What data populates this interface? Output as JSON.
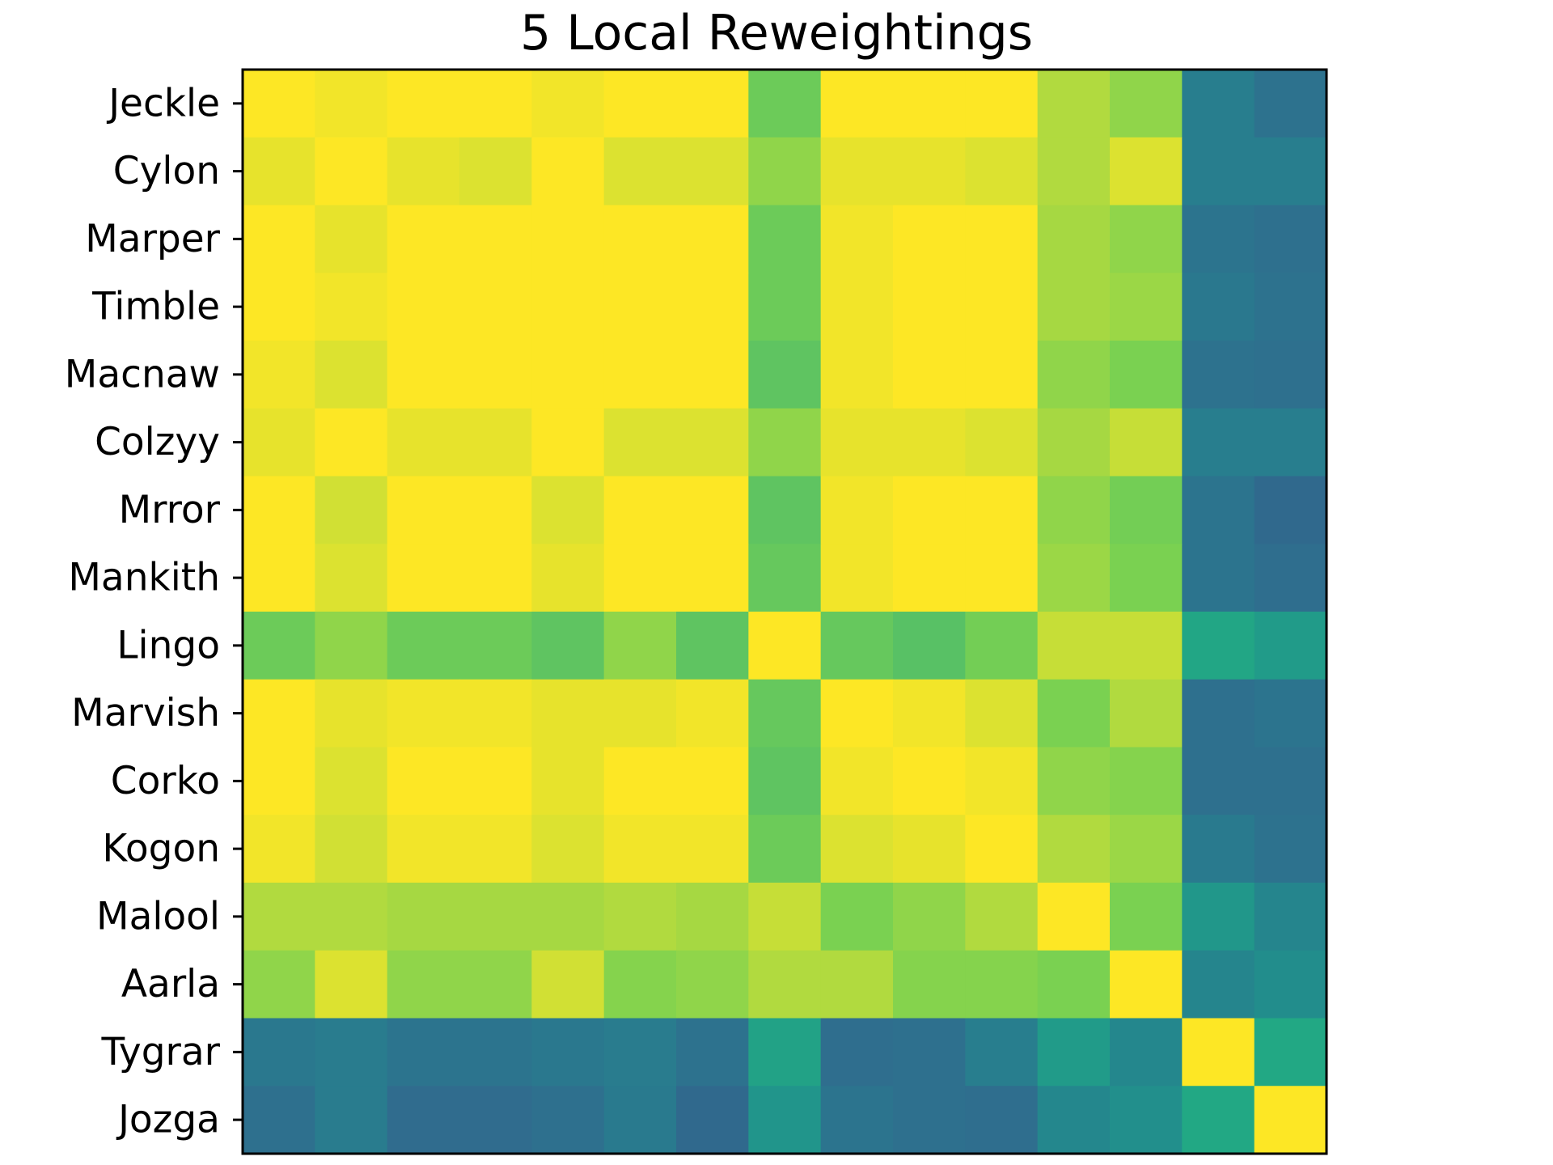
{
  "chart_data": {
    "type": "heatmap",
    "title": "5 Local Reweightings",
    "y_tick_labels": [
      "Jeckle",
      "Cylon",
      "Marper",
      "Timble",
      "Macnaw",
      "Colzyy",
      "Mrror",
      "Mankith",
      "Lingo",
      "Marvish",
      "Corko",
      "Kogon",
      "Malool",
      "Aarla",
      "Tygrar",
      "Jozga"
    ],
    "colormap": "viridis",
    "value_range": [
      0,
      1
    ],
    "values": [
      [
        1.0,
        0.99,
        1.0,
        1.0,
        0.99,
        1.0,
        1.0,
        0.86,
        1.0,
        1.0,
        1.0,
        0.93,
        0.9,
        0.53,
        0.47
      ],
      [
        0.98,
        1.0,
        0.98,
        0.97,
        1.0,
        0.97,
        0.97,
        0.9,
        0.98,
        0.98,
        0.97,
        0.93,
        0.97,
        0.53,
        0.53
      ],
      [
        1.0,
        0.98,
        1.0,
        1.0,
        1.0,
        1.0,
        1.0,
        0.86,
        0.99,
        1.0,
        1.0,
        0.92,
        0.9,
        0.48,
        0.46
      ],
      [
        1.0,
        0.99,
        1.0,
        1.0,
        1.0,
        1.0,
        1.0,
        0.86,
        0.99,
        1.0,
        1.0,
        0.92,
        0.91,
        0.5,
        0.47
      ],
      [
        0.99,
        0.97,
        1.0,
        1.0,
        1.0,
        1.0,
        1.0,
        0.84,
        0.99,
        1.0,
        1.0,
        0.9,
        0.88,
        0.47,
        0.46
      ],
      [
        0.98,
        1.0,
        0.98,
        0.98,
        1.0,
        0.97,
        0.97,
        0.9,
        0.98,
        0.98,
        0.97,
        0.92,
        0.95,
        0.53,
        0.53
      ],
      [
        1.0,
        0.96,
        1.0,
        1.0,
        0.97,
        1.0,
        1.0,
        0.84,
        0.99,
        1.0,
        1.0,
        0.9,
        0.87,
        0.48,
        0.43
      ],
      [
        1.0,
        0.97,
        1.0,
        1.0,
        0.98,
        1.0,
        1.0,
        0.85,
        0.99,
        1.0,
        1.0,
        0.91,
        0.88,
        0.48,
        0.45
      ],
      [
        0.86,
        0.9,
        0.86,
        0.86,
        0.84,
        0.9,
        0.84,
        1.0,
        0.85,
        0.83,
        0.87,
        0.95,
        0.95,
        0.74,
        0.68
      ],
      [
        1.0,
        0.98,
        0.99,
        0.99,
        0.98,
        0.98,
        0.99,
        0.85,
        1.0,
        0.99,
        0.97,
        0.88,
        0.93,
        0.46,
        0.48
      ],
      [
        1.0,
        0.97,
        1.0,
        1.0,
        0.98,
        1.0,
        1.0,
        0.84,
        0.99,
        1.0,
        0.99,
        0.9,
        0.89,
        0.46,
        0.46
      ],
      [
        0.99,
        0.96,
        0.99,
        0.99,
        0.97,
        0.99,
        0.99,
        0.86,
        0.97,
        0.98,
        1.0,
        0.93,
        0.91,
        0.51,
        0.47
      ],
      [
        0.93,
        0.93,
        0.92,
        0.92,
        0.92,
        0.93,
        0.92,
        0.95,
        0.88,
        0.9,
        0.93,
        1.0,
        0.88,
        0.66,
        0.57
      ],
      [
        0.9,
        0.97,
        0.9,
        0.9,
        0.96,
        0.89,
        0.9,
        0.93,
        0.93,
        0.89,
        0.89,
        0.88,
        1.0,
        0.57,
        0.61
      ],
      [
        0.5,
        0.52,
        0.48,
        0.48,
        0.5,
        0.52,
        0.47,
        0.72,
        0.45,
        0.46,
        0.53,
        0.68,
        0.58,
        1.0,
        0.75
      ],
      [
        0.46,
        0.52,
        0.44,
        0.44,
        0.46,
        0.51,
        0.43,
        0.65,
        0.48,
        0.46,
        0.45,
        0.58,
        0.62,
        0.75,
        1.0
      ]
    ]
  }
}
